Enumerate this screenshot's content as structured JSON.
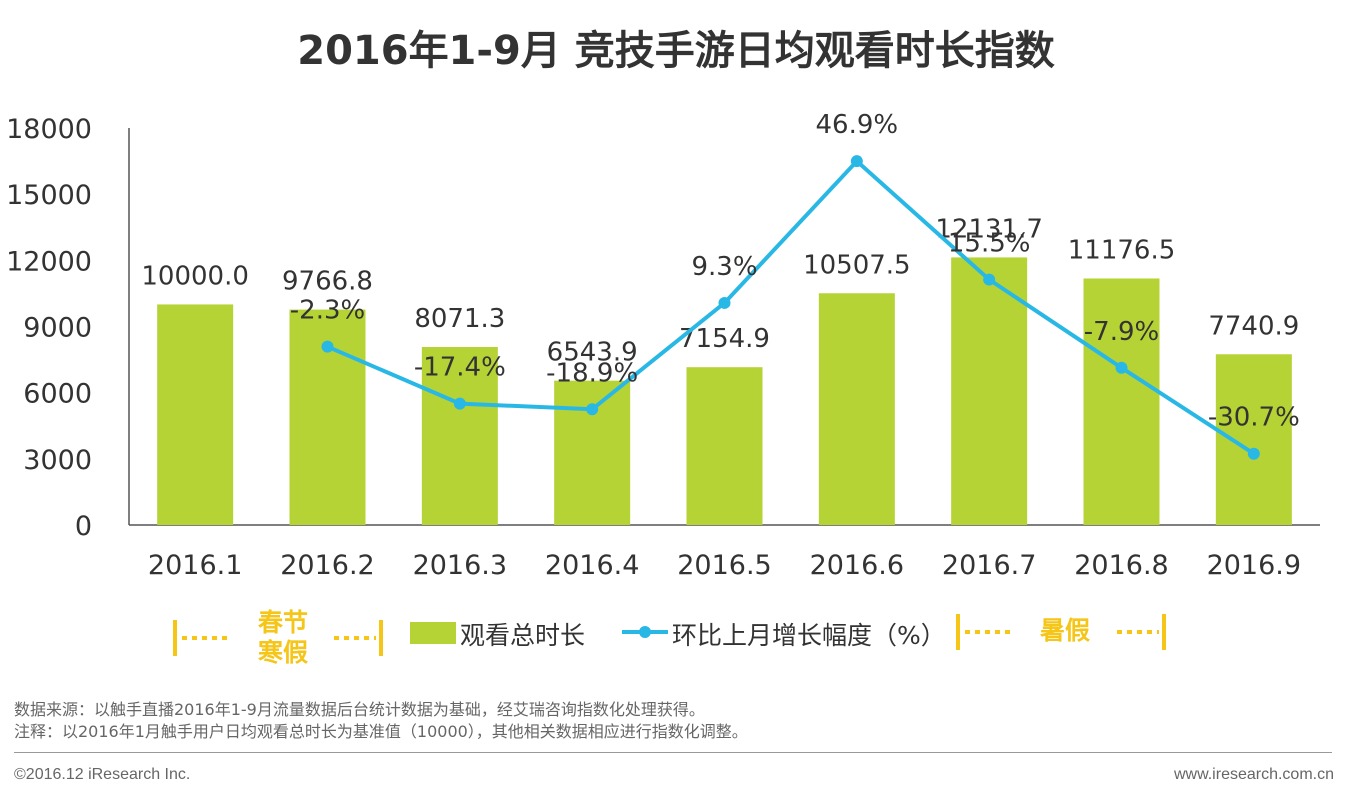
{
  "title": "2016年1-9月 竞技手游日均观看时长指数",
  "colors": {
    "bar": "#B5D334",
    "line": "#29B8E5",
    "holiday": "#F5C518",
    "axis": "#555555"
  },
  "legend": {
    "spring_holiday": [
      "春节",
      "寒假"
    ],
    "bar_series": "观看总时长",
    "line_series": "环比上月增长幅度（%）",
    "summer_holiday": "暑假"
  },
  "chart_data": {
    "type": "bar",
    "categories": [
      "2016.1",
      "2016.2",
      "2016.3",
      "2016.4",
      "2016.5",
      "2016.6",
      "2016.7",
      "2016.8",
      "2016.9"
    ],
    "series": [
      {
        "name": "观看总时长",
        "type": "bar",
        "values": [
          10000.0,
          9766.8,
          8071.3,
          6543.9,
          7154.9,
          10507.5,
          12131.7,
          11176.5,
          7740.9
        ],
        "labels": [
          "10000.0",
          "9766.8",
          "8071.3",
          "6543.9",
          "7154.9",
          "10507.5",
          "12131.7",
          "11176.5",
          "7740.9"
        ]
      },
      {
        "name": "环比上月增长幅度（%）",
        "type": "line",
        "values": [
          null,
          -2.3,
          -17.4,
          -18.9,
          9.3,
          46.9,
          15.5,
          -7.9,
          -30.7
        ],
        "labels": [
          "",
          "-2.3%",
          "-17.4%",
          "-18.9%",
          "9.3%",
          "46.9%",
          "15.5%",
          "-7.9%",
          "-30.7%"
        ]
      }
    ],
    "y_ticks": [
      "0",
      "3000",
      "6000",
      "9000",
      "12000",
      "15000",
      "18000"
    ],
    "ylim": [
      0,
      18000
    ],
    "grid": false,
    "legend_position": "bottom"
  },
  "notes": [
    "数据来源：以触手直播2016年1-9月流量数据后台统计数据为基础，经艾瑞咨询指数化处理获得。",
    "注释：以2016年1月触手用户日均观看总时长为基准值（10000），其他相关数据相应进行指数化调整。"
  ],
  "footer": {
    "copyright": "©2016.12 iResearch Inc.",
    "website": "www.iresearch.com.cn"
  }
}
